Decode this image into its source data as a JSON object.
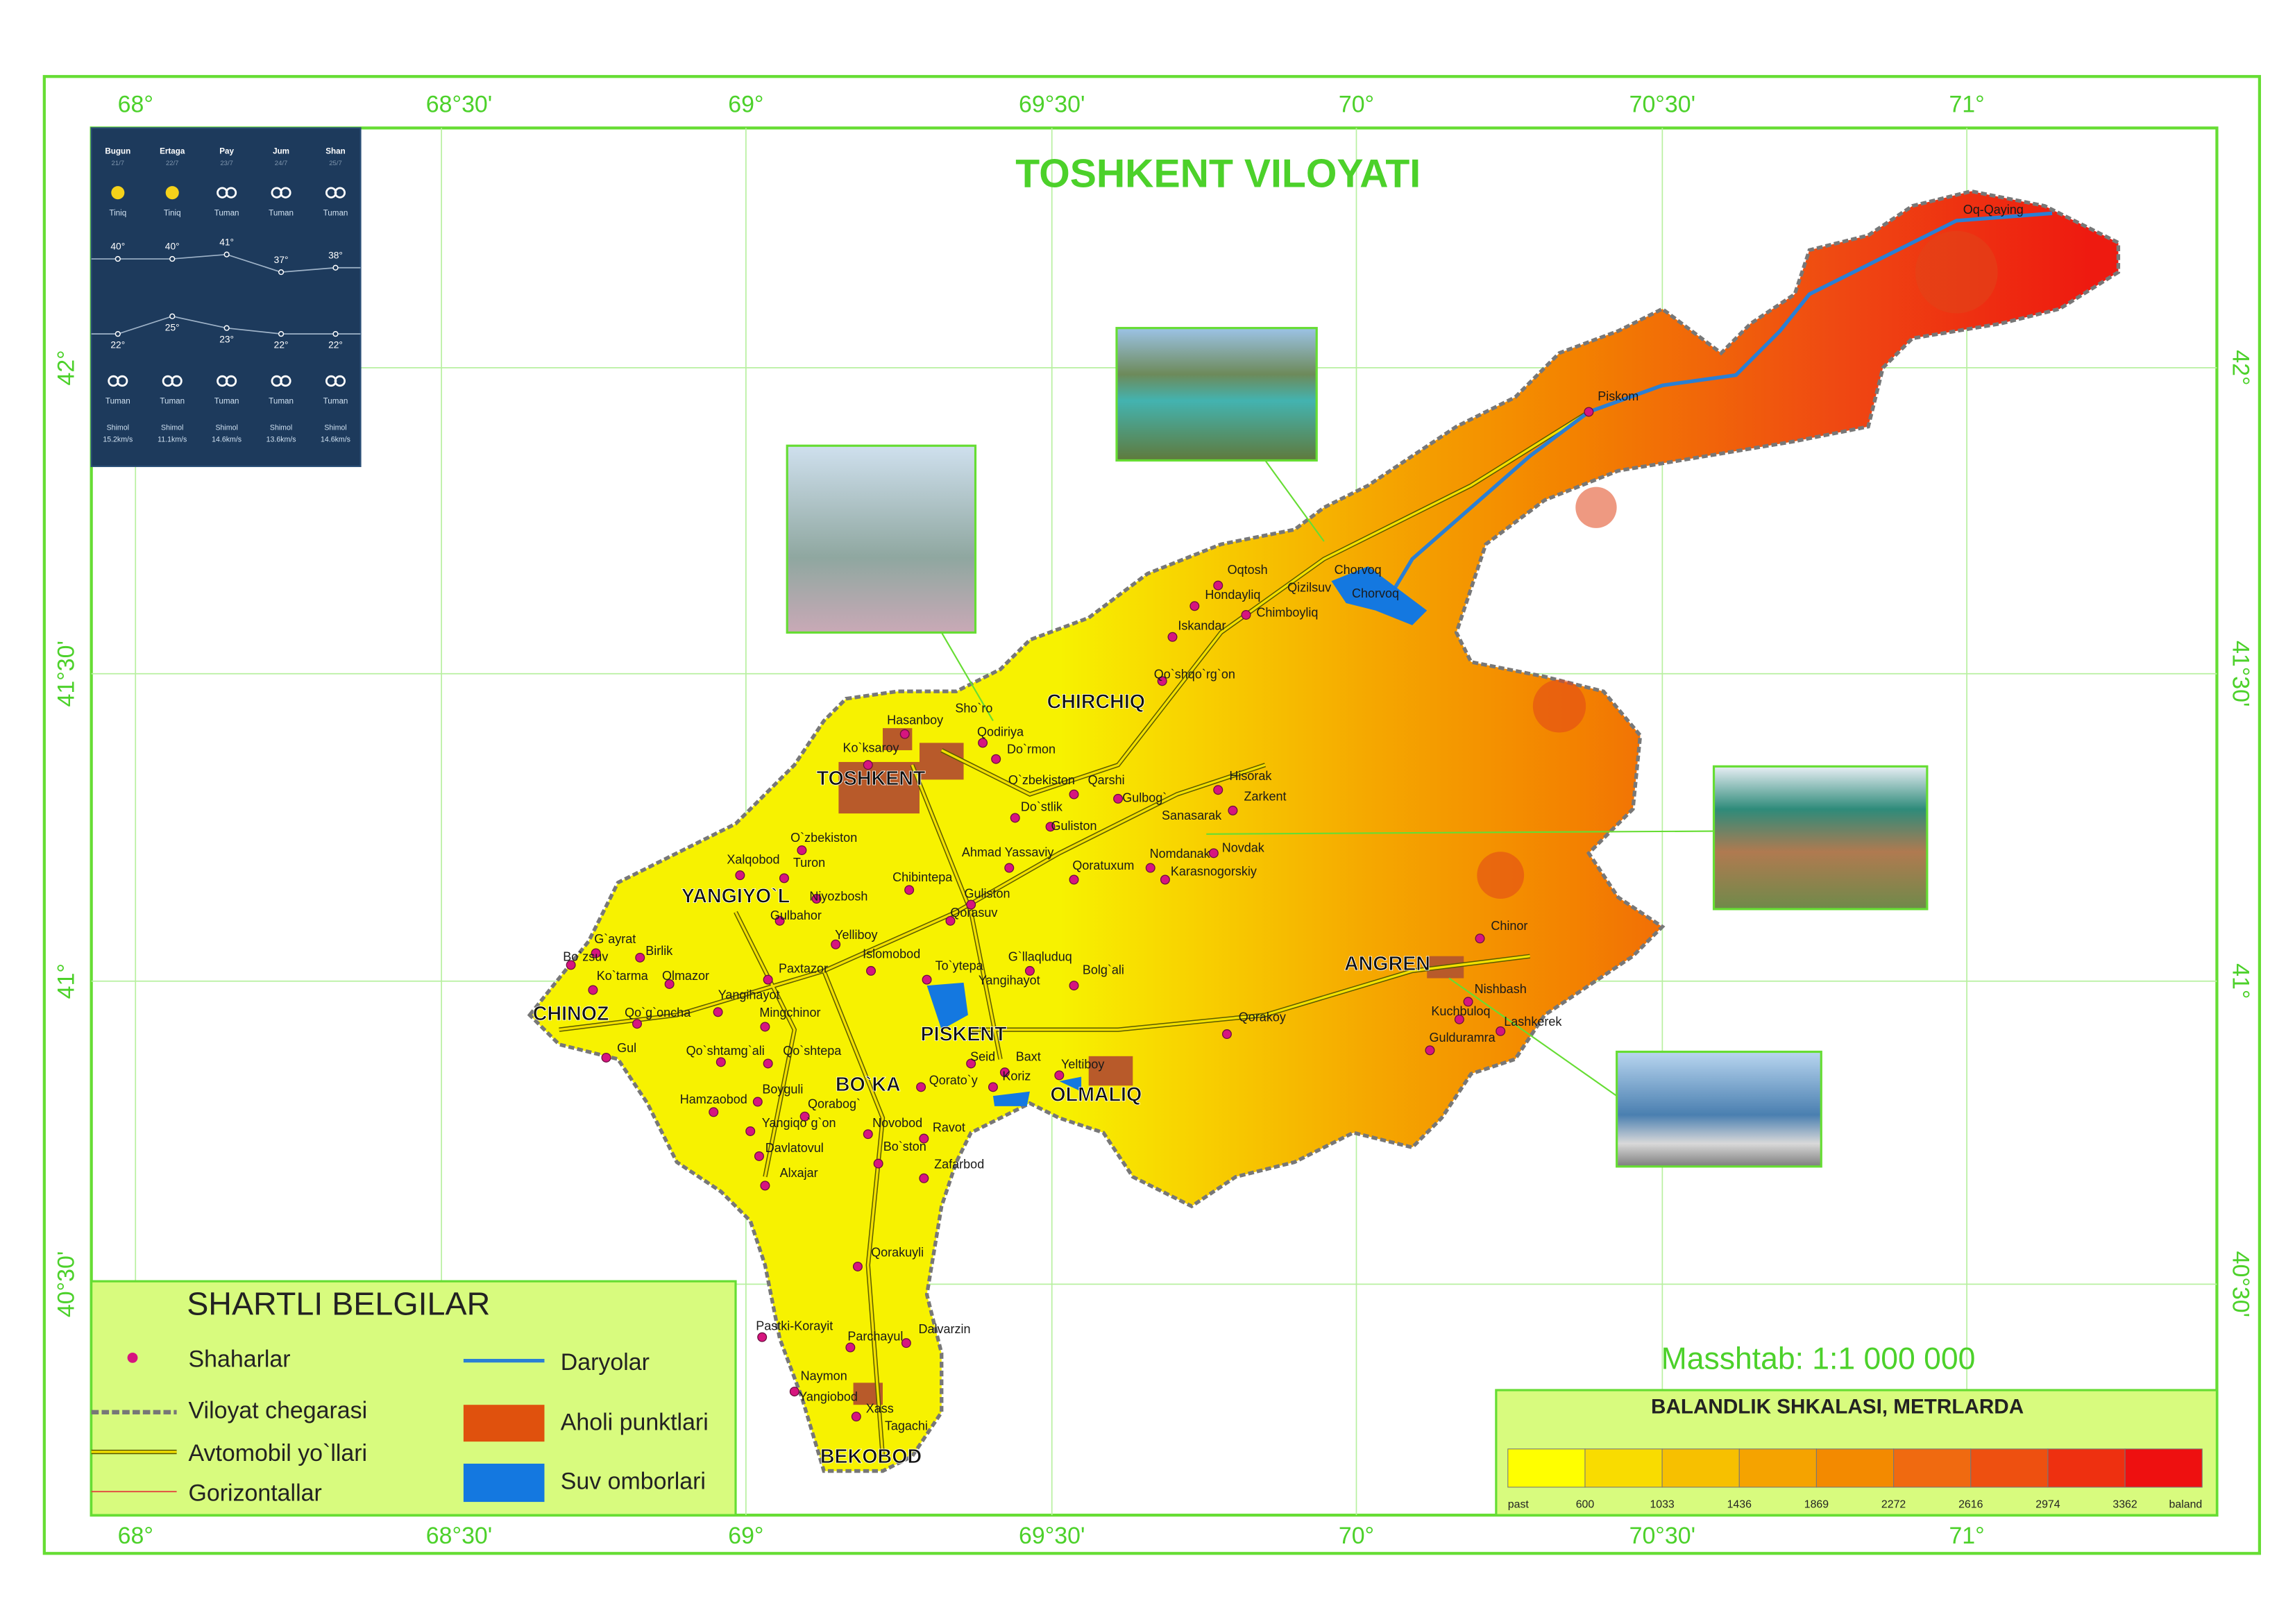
{
  "title": "TOSHKENT VILOYATI",
  "lon_labels": [
    "68°",
    "68°30'",
    "69°",
    "69°30'",
    "70°",
    "70°30'",
    "71°"
  ],
  "lat_labels": [
    "42°",
    "41°30'",
    "41°",
    "40°30'"
  ],
  "forecast": {
    "days": [
      "Bugun",
      "Ertaga",
      "Pay",
      "Jum",
      "Shan"
    ],
    "dates": [
      "21/7",
      "22/7",
      "23/7",
      "24/7",
      "25/7"
    ],
    "day_conditions": [
      "Tiniq",
      "Tiniq",
      "Tuman",
      "Tuman",
      "Tuman"
    ],
    "highs": [
      {
        "value": 40,
        "label": "40°"
      },
      {
        "value": 40,
        "label": "40°"
      },
      {
        "value": 41,
        "label": "41°"
      },
      {
        "value": 37,
        "label": "37°"
      },
      {
        "value": 38,
        "label": "38°"
      }
    ],
    "lows": [
      {
        "value": 22,
        "label": "22°"
      },
      {
        "value": 25,
        "label": "25°"
      },
      {
        "value": 23,
        "label": "23°"
      },
      {
        "value": 22,
        "label": "22°"
      },
      {
        "value": 22,
        "label": "22°"
      }
    ],
    "night_conditions": [
      "Tuman",
      "Tuman",
      "Tuman",
      "Tuman",
      "Tuman"
    ],
    "wind": [
      "Shimol",
      "Shimol",
      "Shimol",
      "Shimol",
      "Shimol"
    ],
    "wind_speeds": [
      "15.2km/s",
      "11.1km/s",
      "14.6km/s",
      "13.6km/s",
      "14.6km/s"
    ]
  },
  "cities": [
    "TOSHKENT",
    "CHIRCHIQ",
    "YANGIYO`L",
    "CHINOZ",
    "PISKENT",
    "BO`KA",
    "OLMALIQ",
    "ANGREN",
    "BEKOBOD"
  ],
  "settlements": [
    "Oq-Qaying",
    "Piskom",
    "Oqtosh",
    "Chorvoq",
    "Qizilsuv",
    "Chorvoq",
    "Hondayliq",
    "Chimboyliq",
    "Iskandar",
    "Qo`shqo`rg`on",
    "Hasanboy",
    "Sho`ro",
    "Qodiriya",
    "Do`rmon",
    "Ko`ksaroy",
    "O`zbekiston",
    "Qarshi",
    "Hisorak",
    "Zarkent",
    "Do`stlik",
    "Gulbog`",
    "Sanasarak",
    "Guliston",
    "O`zbekiston",
    "Ahmad Yassaviy",
    "Novdak",
    "Nomdanak",
    "Karasnogorskiy",
    "Xalqobod",
    "Turon",
    "Qoratuxum",
    "Chibintepa",
    "Niyozbosh",
    "Guliston",
    "Gulbahor",
    "Qorasuv",
    "Yelliboy",
    "G`ayrat",
    "Birlik",
    "Bo`zsuv",
    "Islomobod",
    "G`llaqluduq",
    "Bolg`ali",
    "Ko`tarma",
    "Olmazor",
    "Paxtazor",
    "To`ytepa",
    "Yangihayot",
    "Yangihayot",
    "Qorakoy",
    "Qo`g`oncha",
    "Mingchinor",
    "Gul",
    "Qo`shtamg`ali",
    "Qo`shtepa",
    "Seid",
    "Baxt",
    "Yeltiboy",
    "Koriz",
    "Qorato`y",
    "Boyguli",
    "Hamzaobod",
    "Qorabog`",
    "Yangiqo`g`on",
    "Novobod",
    "Ravot",
    "Davlatovul",
    "Bo`ston",
    "Zafarbod",
    "Alxajar",
    "Qorakuyli",
    "Pastki-Korayit",
    "Parchayul",
    "Dalvarzin",
    "Naymon",
    "Yangiobod",
    "Xass",
    "Tagachi",
    "Chinor",
    "Nishbash",
    "Kuchbuloq",
    "Lashkerek",
    "Gulduramra"
  ],
  "legend": {
    "title": "SHARTLI BELGILAR",
    "items": [
      "Shaharlar",
      "Viloyat chegarasi",
      "Avtomobil yo`llari",
      "Gorizontallar",
      "Daryolar",
      "Aholi punktlari",
      "Suv omborlari"
    ]
  },
  "scale_text": "Masshtab: 1:1 000 000",
  "elevation_scale": {
    "title": "BALANDLIK SHKALASI, METRLARDA",
    "labels": [
      "past",
      600,
      1033,
      1436,
      1869,
      2272,
      2616,
      2974,
      3362,
      "baland"
    ]
  }
}
